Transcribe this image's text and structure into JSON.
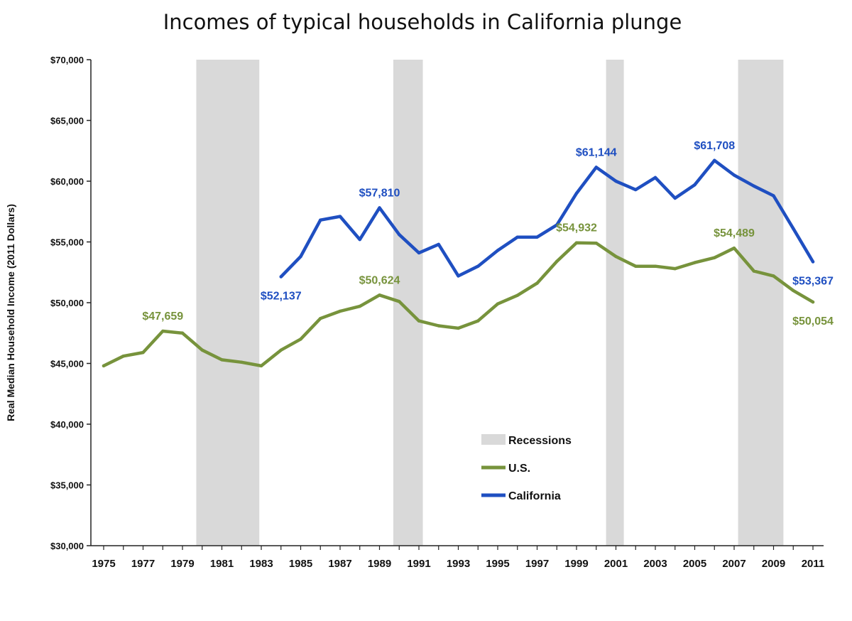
{
  "chart_data": {
    "type": "line",
    "title": "Incomes of typical households in California plunge",
    "ylabel": "Real Median Household Income (2011 Dollars)",
    "xlabel": "",
    "ylim": [
      30000,
      70000
    ],
    "xlim": [
      1975,
      2011
    ],
    "yticks": [
      30000,
      35000,
      40000,
      45000,
      50000,
      55000,
      60000,
      65000,
      70000
    ],
    "ytick_labels": [
      "$30,000",
      "$35,000",
      "$40,000",
      "$45,000",
      "$50,000",
      "$55,000",
      "$60,000",
      "$65,000",
      "$70,000"
    ],
    "xtick_labels": [
      "1975",
      "1977",
      "1979",
      "1981",
      "1983",
      "1985",
      "1987",
      "1989",
      "1991",
      "1993",
      "1995",
      "1997",
      "1999",
      "2001",
      "2003",
      "2005",
      "2007",
      "2009",
      "2011"
    ],
    "grid": false,
    "legend_position": "center-bottom",
    "recessions": [
      [
        1979.7,
        1982.9
      ],
      [
        1989.7,
        1991.2
      ],
      [
        2000.5,
        2001.4
      ],
      [
        2007.2,
        2009.5
      ]
    ],
    "recession_legend": "Recessions",
    "recession_color": "#d9d9d9",
    "series": [
      {
        "name": "U.S.",
        "color": "#77933c",
        "x": [
          1975,
          1976,
          1977,
          1978,
          1979,
          1980,
          1981,
          1982,
          1983,
          1984,
          1985,
          1986,
          1987,
          1988,
          1989,
          1990,
          1991,
          1992,
          1993,
          1994,
          1995,
          1996,
          1997,
          1998,
          1999,
          2000,
          2001,
          2002,
          2003,
          2004,
          2005,
          2006,
          2007,
          2008,
          2009,
          2010,
          2011
        ],
        "values": [
          44800,
          45600,
          45900,
          47659,
          47500,
          46100,
          45300,
          45100,
          44800,
          46100,
          47000,
          48700,
          49300,
          49700,
          50624,
          50100,
          48500,
          48100,
          47900,
          48500,
          49900,
          50600,
          51600,
          53400,
          54932,
          54900,
          53800,
          53000,
          53000,
          52800,
          53300,
          53700,
          54489,
          52600,
          52200,
          51000,
          50054
        ]
      },
      {
        "name": "California",
        "color": "#1f4fc1",
        "x": [
          1984,
          1985,
          1986,
          1987,
          1988,
          1989,
          1990,
          1991,
          1992,
          1993,
          1994,
          1995,
          1996,
          1997,
          1998,
          1999,
          2000,
          2001,
          2002,
          2003,
          2004,
          2005,
          2006,
          2007,
          2008,
          2009,
          2010,
          2011
        ],
        "values": [
          52137,
          53800,
          56800,
          57100,
          55200,
          57810,
          55600,
          54100,
          54800,
          52200,
          53000,
          54300,
          55400,
          55400,
          56400,
          59000,
          61144,
          60000,
          59300,
          60300,
          58600,
          59700,
          61708,
          60500,
          59600,
          58800,
          56100,
          53367
        ]
      }
    ],
    "data_labels": [
      {
        "series": "U.S.",
        "x": 1978,
        "text": "$47,659",
        "position": "above"
      },
      {
        "series": "U.S.",
        "x": 1989,
        "text": "$50,624",
        "position": "above"
      },
      {
        "series": "U.S.",
        "x": 1999,
        "text": "$54,932",
        "position": "above"
      },
      {
        "series": "U.S.",
        "x": 2007,
        "text": "$54,489",
        "position": "above"
      },
      {
        "series": "U.S.",
        "x": 2011,
        "text": "$50,054",
        "position": "below"
      },
      {
        "series": "California",
        "x": 1984,
        "text": "$52,137",
        "position": "below"
      },
      {
        "series": "California",
        "x": 1989,
        "text": "$57,810",
        "position": "above"
      },
      {
        "series": "California",
        "x": 2000,
        "text": "$61,144",
        "position": "above"
      },
      {
        "series": "California",
        "x": 2006,
        "text": "$61,708",
        "position": "above"
      },
      {
        "series": "California",
        "x": 2011,
        "text": "$53,367",
        "position": "below"
      }
    ]
  }
}
